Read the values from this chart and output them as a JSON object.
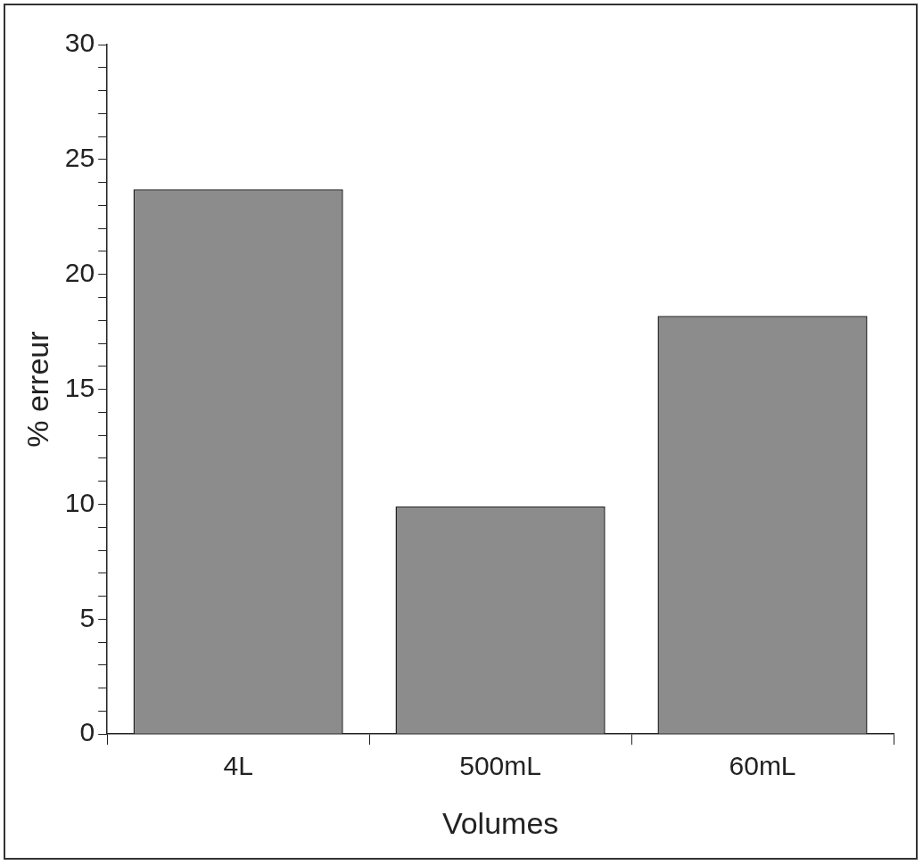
{
  "chart_data": {
    "type": "bar",
    "categories": [
      "4L",
      "500mL",
      "60mL"
    ],
    "values": [
      23.7,
      9.9,
      18.2
    ],
    "color": "#8c8c8c",
    "xlabel": "Volumes",
    "ylabel": "% erreur",
    "ylim": [
      0,
      30
    ],
    "yticks": [
      0,
      {
        "value": 1,
        "label": null
      },
      {
        "value": 2,
        "label": null
      },
      {
        "value": 3,
        "label": null
      },
      {
        "value": 4,
        "label": null
      },
      5,
      {
        "value": 6,
        "label": null
      },
      {
        "value": 7,
        "label": null
      },
      {
        "value": 8,
        "label": null
      },
      {
        "value": 9,
        "label": null
      },
      10,
      {
        "value": 11,
        "label": null
      },
      {
        "value": 12,
        "label": null
      },
      {
        "value": 13,
        "label": null
      },
      {
        "value": 14,
        "label": null
      },
      15,
      {
        "value": 16,
        "label": null
      },
      {
        "value": 17,
        "label": null
      },
      {
        "value": 18,
        "label": null
      },
      {
        "value": 19,
        "label": null
      },
      20,
      {
        "value": 21,
        "label": null
      },
      {
        "value": 22,
        "label": null
      },
      {
        "value": 23,
        "label": null
      },
      {
        "value": 24,
        "label": null
      },
      25,
      {
        "value": 26,
        "label": null
      },
      {
        "value": 27,
        "label": null
      },
      {
        "value": 28,
        "label": null
      },
      {
        "value": 29,
        "label": null
      },
      30
    ],
    "grid": false,
    "legend": false
  }
}
